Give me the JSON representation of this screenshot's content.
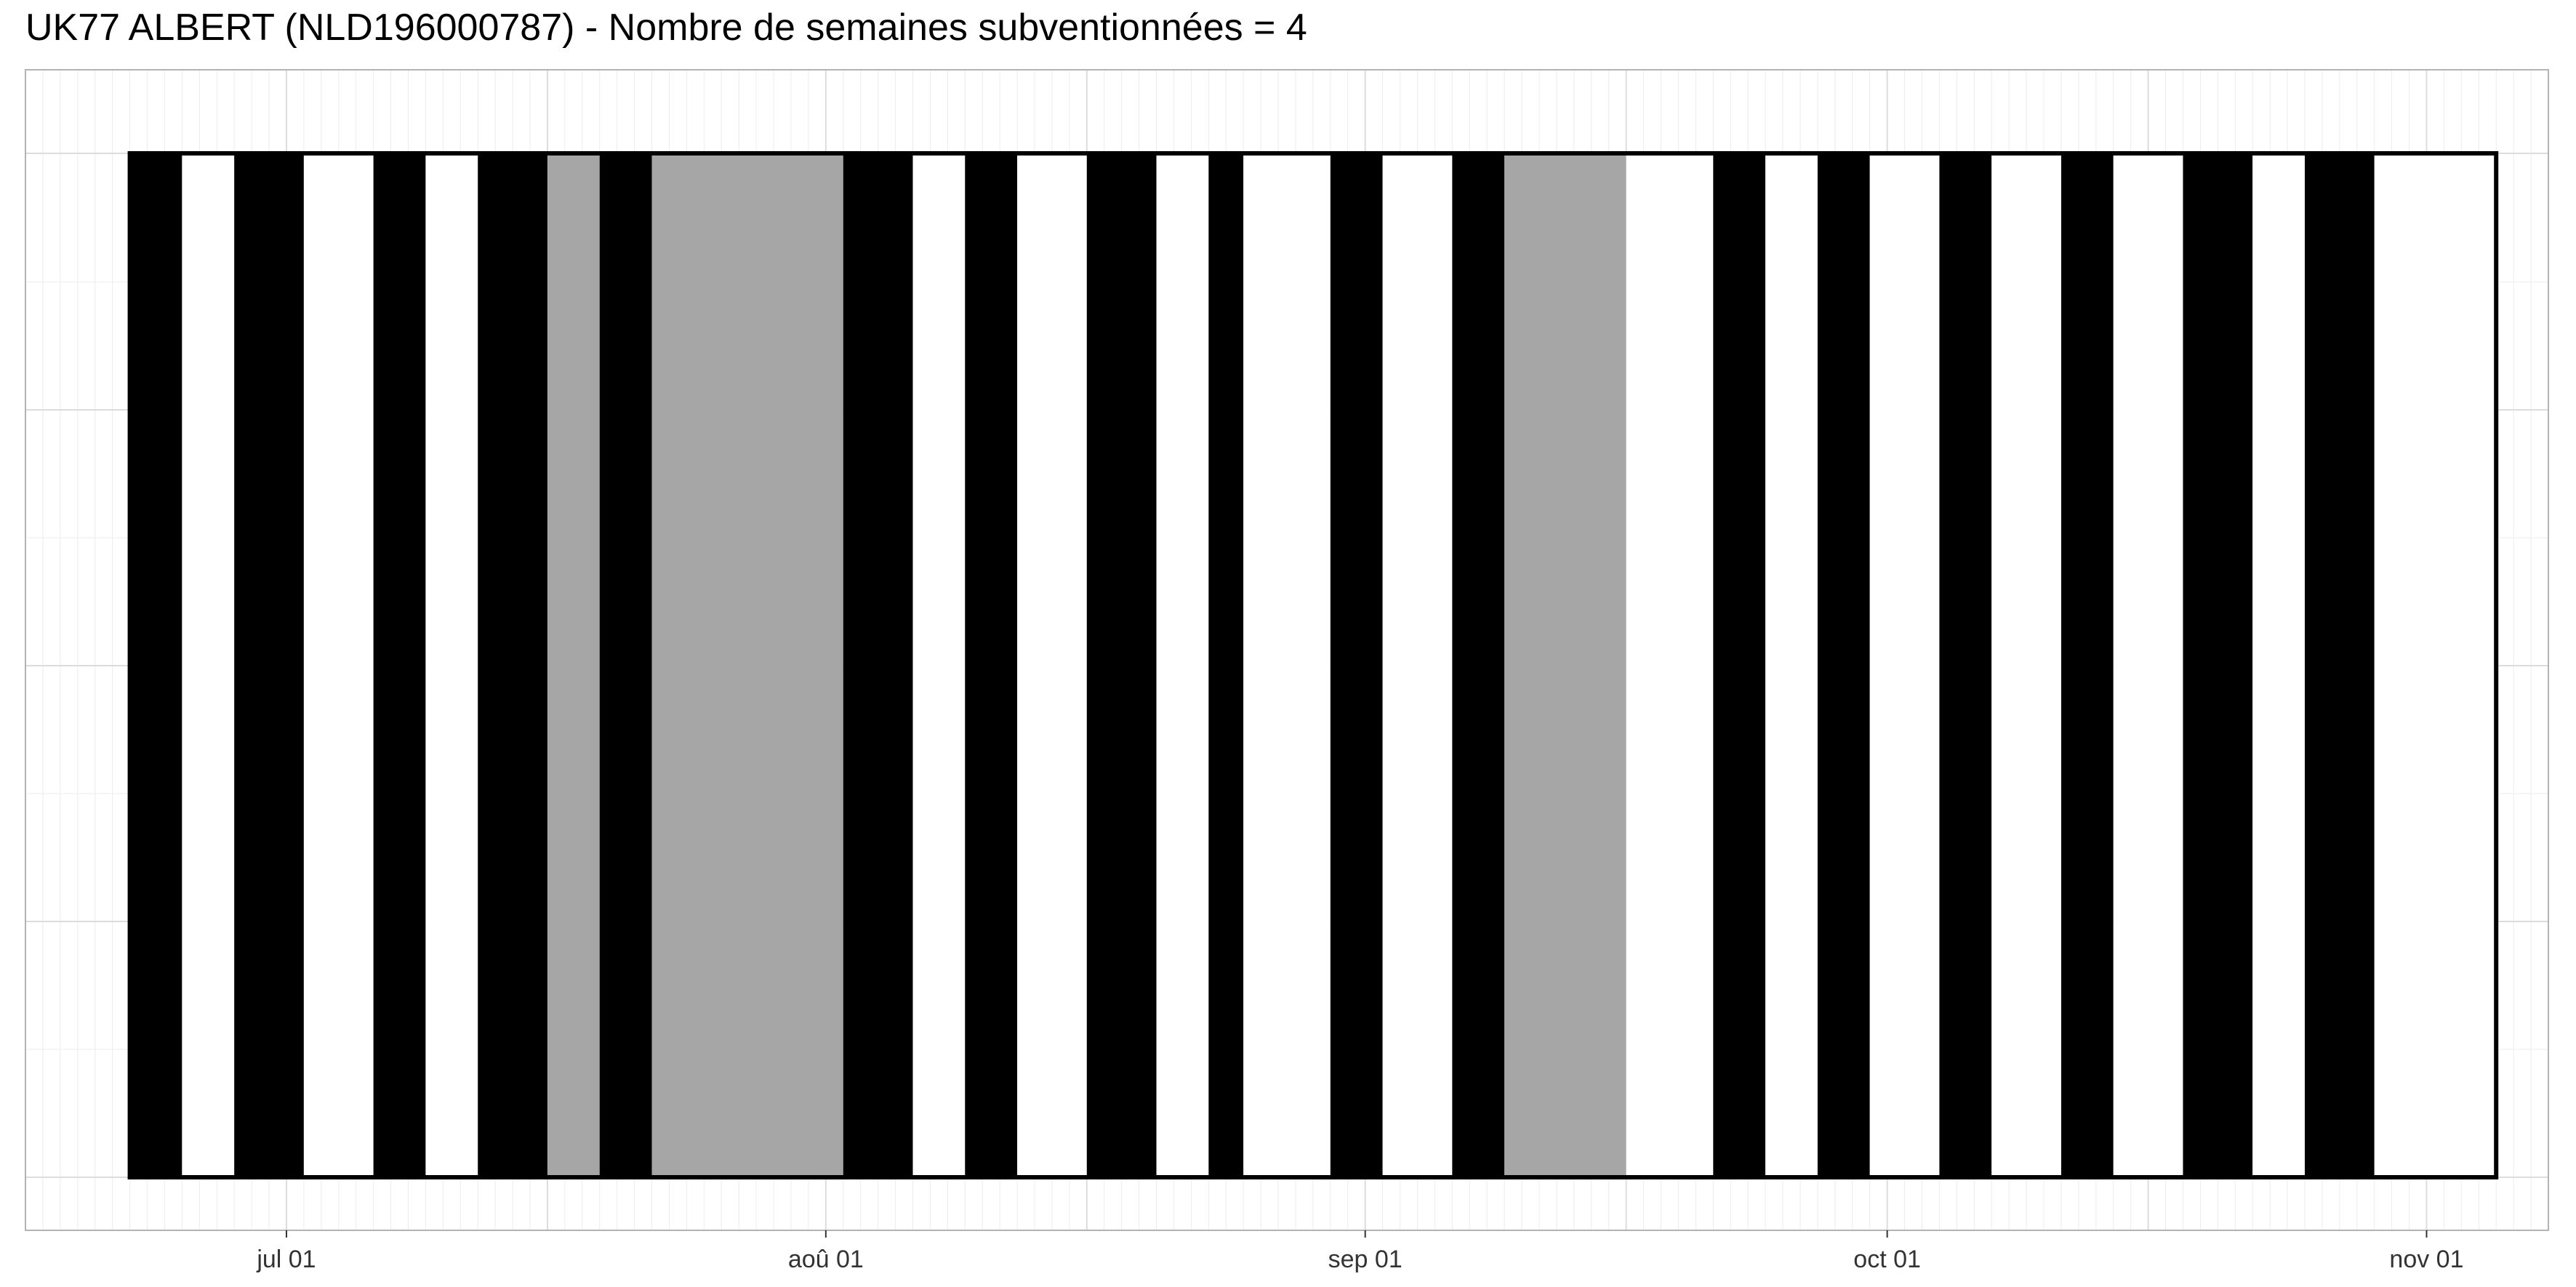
{
  "chart_data": {
    "type": "timeline",
    "title": "UK77 ALBERT (NLD196000787) - Nombre de semaines subventionnées = 4",
    "xlabel": "",
    "ylabel": "",
    "x_axis": {
      "type": "date",
      "range": [
        "2024-06-16",
        "2024-11-08"
      ],
      "ticks": [
        {
          "date": "2024-07-01",
          "label": "jul 01"
        },
        {
          "date": "2024-08-01",
          "label": "aoû 01"
        },
        {
          "date": "2024-09-01",
          "label": "sep 01"
        },
        {
          "date": "2024-10-01",
          "label": "oct 01"
        },
        {
          "date": "2024-11-01",
          "label": "nov 01"
        }
      ]
    },
    "grid": true,
    "period": {
      "start": "2024-06-22",
      "end": "2024-11-05"
    },
    "colors": {
      "black": "#000000",
      "grey": "#a6a6a6",
      "white": "#ffffff"
    },
    "segments": [
      {
        "start": "2024-06-22",
        "end": "2024-06-25",
        "color": "black"
      },
      {
        "start": "2024-06-25",
        "end": "2024-06-28",
        "color": "white"
      },
      {
        "start": "2024-06-28",
        "end": "2024-07-02",
        "color": "black"
      },
      {
        "start": "2024-07-02",
        "end": "2024-07-06",
        "color": "white"
      },
      {
        "start": "2024-07-06",
        "end": "2024-07-09",
        "color": "black"
      },
      {
        "start": "2024-07-09",
        "end": "2024-07-12",
        "color": "white"
      },
      {
        "start": "2024-07-12",
        "end": "2024-07-16",
        "color": "black"
      },
      {
        "start": "2024-07-16",
        "end": "2024-07-19",
        "color": "grey"
      },
      {
        "start": "2024-07-19",
        "end": "2024-07-22",
        "color": "black"
      },
      {
        "start": "2024-07-22",
        "end": "2024-08-02",
        "color": "grey"
      },
      {
        "start": "2024-08-02",
        "end": "2024-08-06",
        "color": "black"
      },
      {
        "start": "2024-08-06",
        "end": "2024-08-09",
        "color": "white"
      },
      {
        "start": "2024-08-09",
        "end": "2024-08-12",
        "color": "black"
      },
      {
        "start": "2024-08-12",
        "end": "2024-08-16",
        "color": "white"
      },
      {
        "start": "2024-08-16",
        "end": "2024-08-20",
        "color": "black"
      },
      {
        "start": "2024-08-20",
        "end": "2024-08-23",
        "color": "white"
      },
      {
        "start": "2024-08-23",
        "end": "2024-08-25",
        "color": "black"
      },
      {
        "start": "2024-08-25",
        "end": "2024-08-30",
        "color": "white"
      },
      {
        "start": "2024-08-30",
        "end": "2024-09-02",
        "color": "black"
      },
      {
        "start": "2024-09-02",
        "end": "2024-09-06",
        "color": "white"
      },
      {
        "start": "2024-09-06",
        "end": "2024-09-09",
        "color": "black"
      },
      {
        "start": "2024-09-09",
        "end": "2024-09-16",
        "color": "grey"
      },
      {
        "start": "2024-09-16",
        "end": "2024-09-21",
        "color": "white"
      },
      {
        "start": "2024-09-21",
        "end": "2024-09-24",
        "color": "black"
      },
      {
        "start": "2024-09-24",
        "end": "2024-09-27",
        "color": "white"
      },
      {
        "start": "2024-09-27",
        "end": "2024-09-30",
        "color": "black"
      },
      {
        "start": "2024-09-30",
        "end": "2024-10-04",
        "color": "white"
      },
      {
        "start": "2024-10-04",
        "end": "2024-10-07",
        "color": "black"
      },
      {
        "start": "2024-10-07",
        "end": "2024-10-11",
        "color": "white"
      },
      {
        "start": "2024-10-11",
        "end": "2024-10-14",
        "color": "black"
      },
      {
        "start": "2024-10-14",
        "end": "2024-10-18",
        "color": "white"
      },
      {
        "start": "2024-10-18",
        "end": "2024-10-22",
        "color": "black"
      },
      {
        "start": "2024-10-22",
        "end": "2024-10-25",
        "color": "white"
      },
      {
        "start": "2024-10-25",
        "end": "2024-10-29",
        "color": "black"
      },
      {
        "start": "2024-10-29",
        "end": "2024-11-05",
        "color": "white"
      }
    ]
  }
}
